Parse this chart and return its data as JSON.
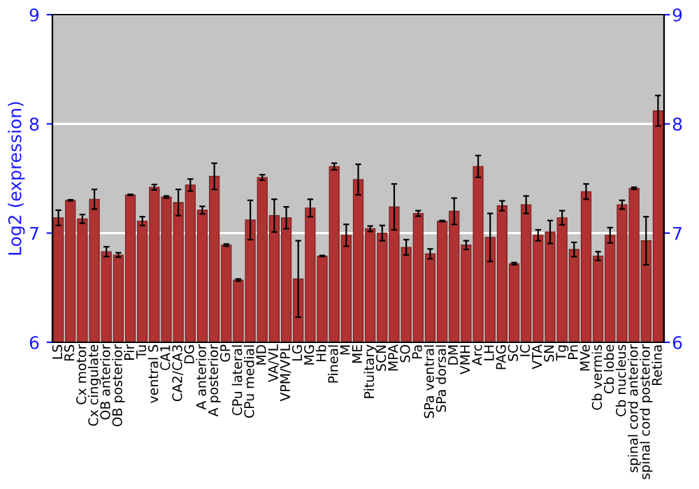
{
  "chart_data": {
    "type": "bar",
    "ylabel": "Log2 (expression)",
    "categories": [
      "LS",
      "RS",
      "Cx motor",
      "Cx cingulate",
      "OB anterior",
      "OB posterior",
      "Pir",
      "Tu",
      "ventral S",
      "CA1",
      "CA2/CA3",
      "DG",
      "A anterior",
      "A posterior",
      "GP",
      "CPu lateral",
      "CPu medial",
      "MD",
      "VA/VL",
      "VPM/VPL",
      "LG",
      "MG",
      "Hb",
      "Pineal",
      "M",
      "ME",
      "Pituitary",
      "SCN",
      "MPA",
      "SO",
      "Pa",
      "SPa ventral",
      "SPa dorsal",
      "DM",
      "VMH",
      "Arc",
      "LH",
      "PAG",
      "SC",
      "IC",
      "VTA",
      "SN",
      "Tg",
      "Pn",
      "MVe",
      "Cb vermis",
      "Cb lobe",
      "Cb nucleus",
      "spinal cord anterior",
      "spinal cord posterior",
      "Retina"
    ],
    "series": [
      {
        "color": "#b03232",
        "values": [
          7.14,
          7.3,
          7.13,
          7.31,
          6.83,
          6.8,
          7.35,
          7.11,
          7.42,
          7.33,
          7.28,
          7.44,
          7.21,
          7.52,
          6.89,
          6.57,
          7.12,
          7.51,
          7.16,
          7.14,
          6.58,
          7.23,
          6.79,
          7.61,
          6.98,
          7.49,
          7.04,
          7.0,
          7.24,
          6.87,
          7.18,
          6.81,
          7.11,
          7.2,
          6.89,
          7.61,
          6.96,
          7.25,
          6.72,
          7.26,
          6.98,
          7.01,
          7.14,
          6.85,
          7.38,
          6.79,
          6.98,
          7.26,
          7.41,
          6.93,
          8.12
        ],
        "errors": [
          0.07,
          0.005,
          0.04,
          0.09,
          0.045,
          0.02,
          0.005,
          0.04,
          0.025,
          0.01,
          0.12,
          0.055,
          0.035,
          0.12,
          0.01,
          0.01,
          0.18,
          0.025,
          0.15,
          0.1,
          0.35,
          0.08,
          0.005,
          0.03,
          0.1,
          0.14,
          0.025,
          0.07,
          0.21,
          0.07,
          0.025,
          0.045,
          0.005,
          0.12,
          0.04,
          0.1,
          0.22,
          0.045,
          0.01,
          0.08,
          0.05,
          0.105,
          0.065,
          0.065,
          0.07,
          0.04,
          0.07,
          0.04,
          0.01,
          0.22,
          0.14
        ]
      }
    ],
    "ylim": [
      6,
      9
    ],
    "yticks": [
      6,
      7,
      8,
      9
    ],
    "y2lim": [
      6,
      9
    ],
    "y2ticks": [
      6,
      7,
      8,
      9
    ],
    "grid": "y"
  }
}
